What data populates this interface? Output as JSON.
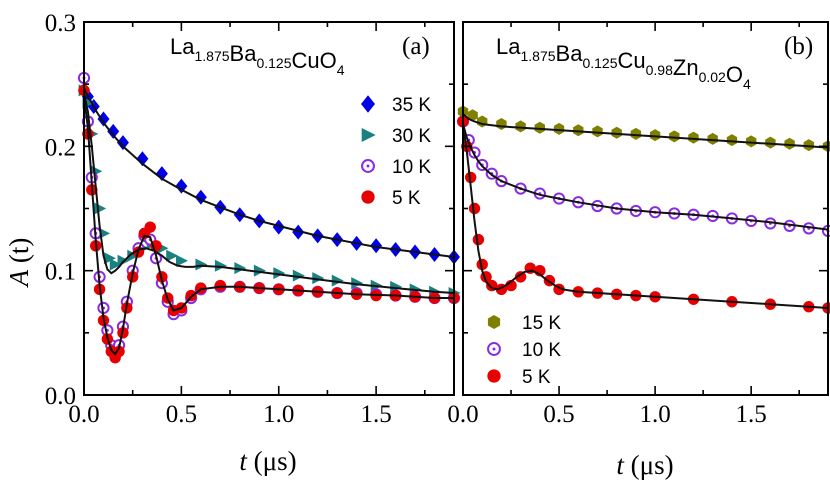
{
  "figure": {
    "y_label": "A (t)",
    "y_label_italic_part": "A",
    "y_label_rest": " (t)",
    "x_label_italic_part": "t",
    "x_label_rest": " (μs)"
  },
  "chart_data": [
    {
      "type": "scatter",
      "panel_tag": "(a)",
      "compound": {
        "parts": [
          {
            "text": "La",
            "sub": "1.875"
          },
          {
            "text": "Ba",
            "sub": "0.125"
          },
          {
            "text": "CuO",
            "sub": "4"
          }
        ]
      },
      "xlabel": "t (μs)",
      "ylabel": "A (t)",
      "xlim": [
        0.0,
        1.9
      ],
      "ylim": [
        0.0,
        0.3
      ],
      "x_ticks": [
        "0.0",
        "0.5",
        "1.0",
        "1.5"
      ],
      "y_ticks": [
        "0.0",
        "0.1",
        "0.2",
        "0.3"
      ],
      "legend_position": "right",
      "series": [
        {
          "name": "35 K",
          "marker": "diamond",
          "color": "#0000e6",
          "x": [
            0.0,
            0.02,
            0.05,
            0.1,
            0.15,
            0.2,
            0.3,
            0.4,
            0.5,
            0.6,
            0.7,
            0.8,
            0.9,
            1.0,
            1.1,
            1.2,
            1.3,
            1.4,
            1.5,
            1.6,
            1.7,
            1.8,
            1.9
          ],
          "y": [
            0.245,
            0.24,
            0.232,
            0.222,
            0.212,
            0.203,
            0.19,
            0.178,
            0.168,
            0.159,
            0.151,
            0.145,
            0.14,
            0.135,
            0.131,
            0.128,
            0.125,
            0.122,
            0.12,
            0.117,
            0.115,
            0.113,
            0.111
          ]
        },
        {
          "name": "30 K",
          "marker": "triangle-right",
          "color": "#1a8080",
          "x": [
            0.0,
            0.02,
            0.04,
            0.06,
            0.08,
            0.1,
            0.13,
            0.16,
            0.2,
            0.25,
            0.3,
            0.35,
            0.4,
            0.45,
            0.5,
            0.6,
            0.7,
            0.8,
            0.9,
            1.0,
            1.1,
            1.2,
            1.3,
            1.4,
            1.5,
            1.6,
            1.7,
            1.8,
            1.9
          ],
          "y": [
            0.245,
            0.235,
            0.21,
            0.18,
            0.15,
            0.13,
            0.11,
            0.105,
            0.108,
            0.112,
            0.118,
            0.122,
            0.118,
            0.112,
            0.108,
            0.105,
            0.104,
            0.102,
            0.1,
            0.098,
            0.096,
            0.094,
            0.092,
            0.09,
            0.088,
            0.087,
            0.085,
            0.083,
            0.082
          ]
        },
        {
          "name": "10 K",
          "marker": "open-circle-dot",
          "color": "#8a2be2",
          "x": [
            0.0,
            0.02,
            0.04,
            0.06,
            0.08,
            0.1,
            0.12,
            0.14,
            0.16,
            0.18,
            0.2,
            0.22,
            0.25,
            0.28,
            0.31,
            0.34,
            0.37,
            0.4,
            0.43,
            0.46,
            0.5,
            0.55,
            0.6,
            0.7,
            0.8,
            0.9,
            1.0,
            1.1,
            1.2,
            1.3,
            1.4,
            1.5,
            1.6,
            1.7,
            1.8,
            1.9
          ],
          "y": [
            0.255,
            0.22,
            0.175,
            0.13,
            0.095,
            0.07,
            0.052,
            0.04,
            0.036,
            0.04,
            0.055,
            0.075,
            0.1,
            0.118,
            0.128,
            0.125,
            0.11,
            0.09,
            0.075,
            0.065,
            0.068,
            0.078,
            0.085,
            0.087,
            0.087,
            0.086,
            0.085,
            0.084,
            0.083,
            0.082,
            0.082,
            0.081,
            0.08,
            0.079,
            0.078,
            0.078
          ]
        },
        {
          "name": "5 K",
          "marker": "filled-circle",
          "color": "#e60000",
          "x": [
            0.0,
            0.02,
            0.04,
            0.06,
            0.08,
            0.1,
            0.12,
            0.14,
            0.16,
            0.18,
            0.2,
            0.22,
            0.25,
            0.28,
            0.31,
            0.34,
            0.37,
            0.4,
            0.43,
            0.46,
            0.5,
            0.55,
            0.6,
            0.7,
            0.8,
            0.9,
            1.0,
            1.1,
            1.2,
            1.3,
            1.4,
            1.5,
            1.6,
            1.7,
            1.8,
            1.9
          ],
          "y": [
            0.245,
            0.21,
            0.165,
            0.12,
            0.085,
            0.06,
            0.045,
            0.035,
            0.03,
            0.035,
            0.05,
            0.07,
            0.095,
            0.115,
            0.13,
            0.135,
            0.12,
            0.095,
            0.078,
            0.068,
            0.07,
            0.08,
            0.086,
            0.088,
            0.087,
            0.086,
            0.085,
            0.084,
            0.083,
            0.082,
            0.081,
            0.08,
            0.08,
            0.079,
            0.078,
            0.078
          ]
        }
      ],
      "fits": [
        {
          "x": [
            0.0,
            0.02,
            0.04,
            0.06,
            0.08,
            0.1,
            0.15,
            0.2,
            0.3,
            0.4,
            0.5,
            0.6,
            0.7,
            0.8,
            0.9,
            1.0,
            1.1,
            1.2,
            1.3,
            1.4,
            1.5,
            1.6,
            1.7,
            1.8,
            1.9
          ],
          "y": [
            0.247,
            0.24,
            0.235,
            0.229,
            0.224,
            0.219,
            0.209,
            0.2,
            0.186,
            0.174,
            0.165,
            0.157,
            0.151,
            0.145,
            0.14,
            0.136,
            0.132,
            0.128,
            0.125,
            0.122,
            0.119,
            0.117,
            0.115,
            0.113,
            0.111
          ]
        },
        {
          "x": [
            0.0,
            0.02,
            0.04,
            0.06,
            0.08,
            0.1,
            0.12,
            0.14,
            0.16,
            0.18,
            0.2,
            0.24,
            0.28,
            0.32,
            0.36,
            0.4,
            0.44,
            0.48,
            0.52,
            0.56,
            0.6,
            0.7,
            0.8,
            0.9,
            1.0,
            1.2,
            1.4,
            1.6,
            1.8,
            1.9
          ],
          "y": [
            0.243,
            0.228,
            0.2,
            0.168,
            0.136,
            0.112,
            0.101,
            0.098,
            0.1,
            0.103,
            0.107,
            0.113,
            0.117,
            0.118,
            0.116,
            0.112,
            0.107,
            0.104,
            0.103,
            0.103,
            0.104,
            0.103,
            0.101,
            0.099,
            0.097,
            0.093,
            0.089,
            0.086,
            0.083,
            0.082
          ]
        },
        {
          "x": [
            0.0,
            0.02,
            0.04,
            0.06,
            0.08,
            0.1,
            0.12,
            0.14,
            0.16,
            0.18,
            0.2,
            0.22,
            0.25,
            0.28,
            0.31,
            0.34,
            0.37,
            0.4,
            0.43,
            0.46,
            0.5,
            0.55,
            0.6,
            0.7,
            0.8,
            0.9,
            1.0,
            1.2,
            1.4,
            1.6,
            1.8,
            1.9
          ],
          "y": [
            0.24,
            0.215,
            0.17,
            0.125,
            0.088,
            0.062,
            0.046,
            0.036,
            0.033,
            0.038,
            0.053,
            0.073,
            0.098,
            0.117,
            0.128,
            0.127,
            0.112,
            0.092,
            0.077,
            0.068,
            0.07,
            0.079,
            0.085,
            0.087,
            0.087,
            0.086,
            0.085,
            0.083,
            0.081,
            0.08,
            0.078,
            0.078
          ]
        }
      ]
    },
    {
      "type": "scatter",
      "panel_tag": "(b)",
      "compound": {
        "parts": [
          {
            "text": "La",
            "sub": "1.875"
          },
          {
            "text": "Ba",
            "sub": "0.125"
          },
          {
            "text": "Cu",
            "sub": "0.98"
          },
          {
            "text": "Zn",
            "sub": "0.02"
          },
          {
            "text": "O",
            "sub": "4"
          }
        ]
      },
      "xlabel": "t (μs)",
      "xlim": [
        0.0,
        1.9
      ],
      "ylim": [
        0.0,
        0.3
      ],
      "x_ticks": [
        "0.0",
        "0.5",
        "1.0",
        "1.5"
      ],
      "legend_position": "bottom-left",
      "series": [
        {
          "name": "15 K",
          "marker": "hexagon",
          "color": "#808000",
          "x": [
            0.0,
            0.05,
            0.1,
            0.2,
            0.3,
            0.4,
            0.5,
            0.6,
            0.7,
            0.8,
            0.9,
            1.0,
            1.1,
            1.2,
            1.3,
            1.4,
            1.5,
            1.6,
            1.7,
            1.8,
            1.9
          ],
          "y": [
            0.228,
            0.225,
            0.22,
            0.218,
            0.216,
            0.215,
            0.214,
            0.213,
            0.212,
            0.211,
            0.21,
            0.209,
            0.208,
            0.207,
            0.206,
            0.205,
            0.204,
            0.203,
            0.202,
            0.201,
            0.2
          ]
        },
        {
          "name": "10 K",
          "marker": "open-circle-dot",
          "color": "#8a2be2",
          "x": [
            0.0,
            0.03,
            0.06,
            0.1,
            0.15,
            0.2,
            0.3,
            0.4,
            0.5,
            0.6,
            0.7,
            0.8,
            0.9,
            1.0,
            1.1,
            1.2,
            1.3,
            1.4,
            1.5,
            1.6,
            1.7,
            1.8,
            1.9
          ],
          "y": [
            0.22,
            0.205,
            0.195,
            0.185,
            0.178,
            0.172,
            0.166,
            0.162,
            0.158,
            0.155,
            0.152,
            0.15,
            0.148,
            0.147,
            0.146,
            0.145,
            0.144,
            0.142,
            0.14,
            0.138,
            0.136,
            0.134,
            0.132
          ]
        },
        {
          "name": "5 K",
          "marker": "filled-circle",
          "color": "#e60000",
          "x": [
            0.0,
            0.02,
            0.04,
            0.06,
            0.08,
            0.1,
            0.12,
            0.15,
            0.2,
            0.25,
            0.3,
            0.35,
            0.4,
            0.45,
            0.5,
            0.6,
            0.7,
            0.8,
            0.9,
            1.0,
            1.2,
            1.4,
            1.6,
            1.8,
            1.9
          ],
          "y": [
            0.22,
            0.2,
            0.175,
            0.15,
            0.125,
            0.105,
            0.095,
            0.088,
            0.085,
            0.088,
            0.095,
            0.102,
            0.1,
            0.092,
            0.085,
            0.083,
            0.082,
            0.081,
            0.08,
            0.079,
            0.077,
            0.075,
            0.073,
            0.071,
            0.07
          ]
        }
      ],
      "fits": [
        {
          "x": [
            0.0,
            0.03,
            0.06,
            0.1,
            0.15,
            0.2,
            0.4,
            0.6,
            0.8,
            1.0,
            1.2,
            1.4,
            1.6,
            1.8,
            1.9
          ],
          "y": [
            0.226,
            0.222,
            0.22,
            0.218,
            0.217,
            0.216,
            0.214,
            0.212,
            0.21,
            0.208,
            0.206,
            0.204,
            0.202,
            0.2,
            0.199
          ]
        },
        {
          "x": [
            0.0,
            0.02,
            0.04,
            0.06,
            0.08,
            0.1,
            0.15,
            0.2,
            0.3,
            0.4,
            0.5,
            0.6,
            0.8,
            1.0,
            1.2,
            1.4,
            1.6,
            1.8,
            1.9
          ],
          "y": [
            0.218,
            0.207,
            0.199,
            0.193,
            0.188,
            0.184,
            0.177,
            0.172,
            0.166,
            0.161,
            0.158,
            0.155,
            0.15,
            0.147,
            0.145,
            0.142,
            0.139,
            0.135,
            0.133
          ]
        },
        {
          "x": [
            0.0,
            0.02,
            0.04,
            0.06,
            0.08,
            0.1,
            0.12,
            0.15,
            0.18,
            0.21,
            0.24,
            0.28,
            0.32,
            0.36,
            0.4,
            0.44,
            0.48,
            0.52,
            0.56,
            0.6,
            0.7,
            0.8,
            1.0,
            1.2,
            1.4,
            1.6,
            1.8,
            1.9
          ],
          "y": [
            0.218,
            0.196,
            0.168,
            0.14,
            0.116,
            0.1,
            0.091,
            0.086,
            0.085,
            0.087,
            0.09,
            0.095,
            0.099,
            0.1,
            0.097,
            0.092,
            0.088,
            0.085,
            0.084,
            0.083,
            0.082,
            0.081,
            0.079,
            0.077,
            0.075,
            0.073,
            0.071,
            0.07
          ]
        }
      ]
    }
  ]
}
